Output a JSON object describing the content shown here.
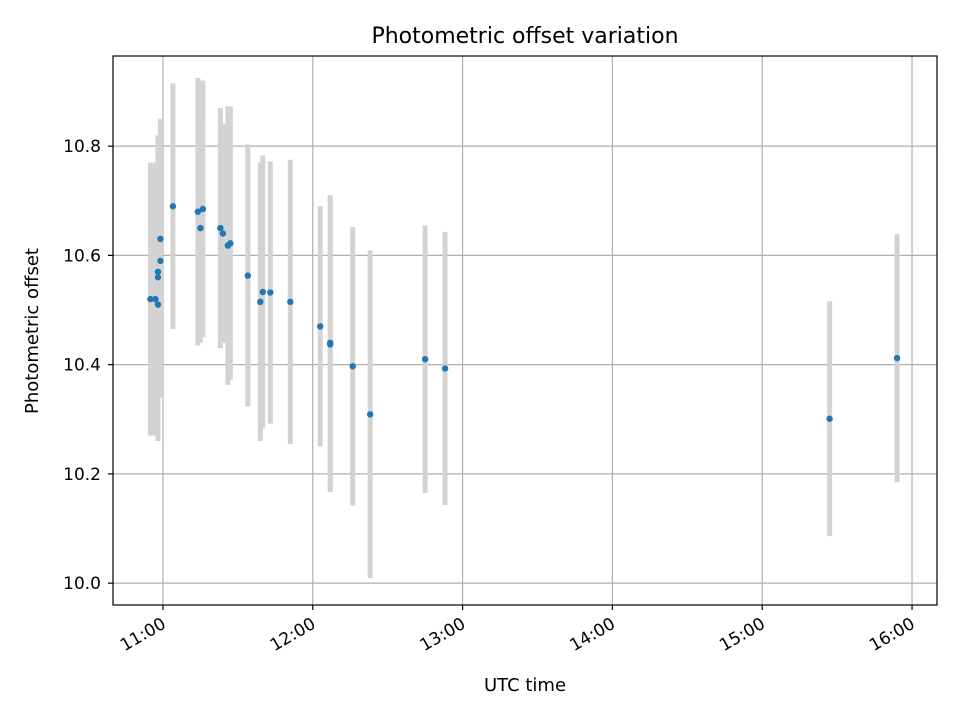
{
  "chart_data": {
    "type": "scatter",
    "title": "Photometric offset variation",
    "xlabel": "UTC time",
    "ylabel": "Photometric offset",
    "xlim": [
      "10:40",
      "16:10"
    ],
    "ylim": [
      9.96,
      10.965
    ],
    "grid": true,
    "x_ticks": [
      "11:00",
      "12:00",
      "13:00",
      "14:00",
      "15:00",
      "16:00"
    ],
    "y_ticks": [
      "10.0",
      "10.2",
      "10.4",
      "10.6",
      "10.8"
    ],
    "colors": {
      "point": "#1f77b4",
      "errorbar": "#d3d3d3",
      "grid": "#b0b0b0"
    },
    "series": [
      {
        "points": [
          {
            "x": "10:55",
            "y": 10.52,
            "err": 0.25
          },
          {
            "x": "10:57",
            "y": 10.52,
            "err": 0.25
          },
          {
            "x": "10:58",
            "y": 10.51,
            "err": 0.25
          },
          {
            "x": "10:58",
            "y": 10.56,
            "err": 0.2
          },
          {
            "x": "10:58",
            "y": 10.57,
            "err": 0.25
          },
          {
            "x": "10:59",
            "y": 10.59,
            "err": 0.25
          },
          {
            "x": "10:59",
            "y": 10.63,
            "err": 0.22
          },
          {
            "x": "11:04",
            "y": 10.69,
            "err": 0.225
          },
          {
            "x": "11:14",
            "y": 10.68,
            "err": 0.245
          },
          {
            "x": "11:15",
            "y": 10.65,
            "err": 0.21
          },
          {
            "x": "11:16",
            "y": 10.685,
            "err": 0.235
          },
          {
            "x": "11:23",
            "y": 10.65,
            "err": 0.22
          },
          {
            "x": "11:24",
            "y": 10.64,
            "err": 0.2
          },
          {
            "x": "11:26",
            "y": 10.618,
            "err": 0.255
          },
          {
            "x": "11:27",
            "y": 10.622,
            "err": 0.25
          },
          {
            "x": "11:34",
            "y": 10.563,
            "err": 0.24
          },
          {
            "x": "11:39",
            "y": 10.515,
            "err": 0.255
          },
          {
            "x": "11:40",
            "y": 10.533,
            "err": 0.25
          },
          {
            "x": "11:43",
            "y": 10.532,
            "err": 0.24
          },
          {
            "x": "11:51",
            "y": 10.515,
            "err": 0.26
          },
          {
            "x": "12:03",
            "y": 10.47,
            "err": 0.22
          },
          {
            "x": "12:07",
            "y": 10.44,
            "err": 0.27
          },
          {
            "x": "12:07",
            "y": 10.437,
            "err": 0.27
          },
          {
            "x": "12:16",
            "y": 10.397,
            "err": 0.255
          },
          {
            "x": "12:23",
            "y": 10.309,
            "err": 0.3
          },
          {
            "x": "12:45",
            "y": 10.41,
            "err": 0.245
          },
          {
            "x": "12:53",
            "y": 10.393,
            "err": 0.25
          },
          {
            "x": "15:27",
            "y": 10.301,
            "err": 0.215
          },
          {
            "x": "15:54",
            "y": 10.412,
            "err": 0.227
          }
        ]
      }
    ]
  }
}
